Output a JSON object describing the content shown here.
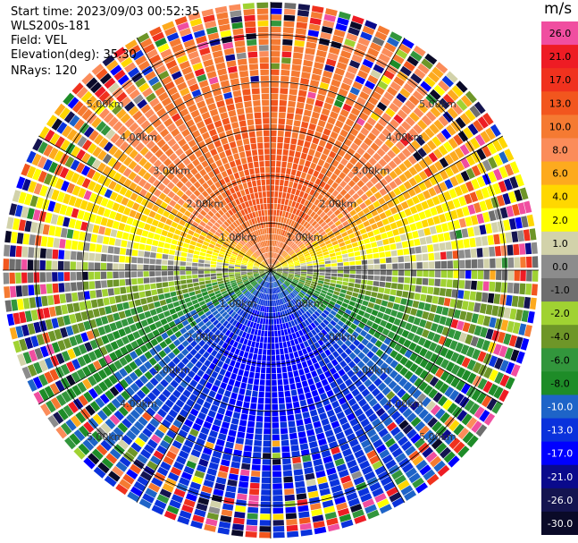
{
  "header": {
    "start_time": "Start time: 2023/09/03 00:52:35",
    "instrument": "WLS200s-181",
    "field": "Field: VEL",
    "elevation": "Elevation(deg): 35.30",
    "nrays": "NRays: 120"
  },
  "chart_data": {
    "type": "heatmap",
    "subtype": "polar-ppi",
    "field": "VEL",
    "units": "m/s",
    "n_rays": 120,
    "elevation_deg": 35.3,
    "range_rings_km": [
      1.0,
      2.0,
      3.0,
      4.0,
      5.0
    ],
    "max_range_km": 5.7,
    "spokes_deg": [
      0,
      30,
      60,
      90,
      120,
      150,
      180,
      210,
      240,
      270,
      300,
      330
    ],
    "ring_labels": [
      "1.00km",
      "2.00km",
      "3.00km",
      "4.00km",
      "5.00km"
    ],
    "pattern": {
      "north_peak_ms": 17,
      "south_peak_ms": -17,
      "note": "positive (warm) velocities toward north half, negative (blue/green) toward south half, noisy beyond ~3.5 km"
    },
    "colorbar": {
      "title": "m/s",
      "levels": [
        {
          "label": "26.0",
          "color": "#f04ea0"
        },
        {
          "label": "21.0",
          "color": "#ee1c24"
        },
        {
          "label": "17.0",
          "color": "#f0321e"
        },
        {
          "label": "13.0",
          "color": "#f2561e"
        },
        {
          "label": "10.0",
          "color": "#f57a32"
        },
        {
          "label": "8.0",
          "color": "#fb8c5a"
        },
        {
          "label": "6.0",
          "color": "#fdaa1e"
        },
        {
          "label": "4.0",
          "color": "#ffd700"
        },
        {
          "label": "2.0",
          "color": "#ffff00"
        },
        {
          "label": "1.0",
          "color": "#d2d2aa"
        },
        {
          "label": "0.0",
          "color": "#8c8c8c"
        },
        {
          "label": "-1.0",
          "color": "#6e6e6e"
        },
        {
          "label": "-2.0",
          "color": "#a0d232"
        },
        {
          "label": "-4.0",
          "color": "#6e9628"
        },
        {
          "label": "-6.0",
          "color": "#32963c"
        },
        {
          "label": "-8.0",
          "color": "#1e8c28"
        },
        {
          "label": "-10.0",
          "color": "#1e64c8"
        },
        {
          "label": "-13.0",
          "color": "#0a32dc"
        },
        {
          "label": "-17.0",
          "color": "#0000ff"
        },
        {
          "label": "-21.0",
          "color": "#0a0a8c"
        },
        {
          "label": "-26.0",
          "color": "#141450"
        },
        {
          "label": "-30.0",
          "color": "#0a0a28"
        }
      ]
    }
  }
}
